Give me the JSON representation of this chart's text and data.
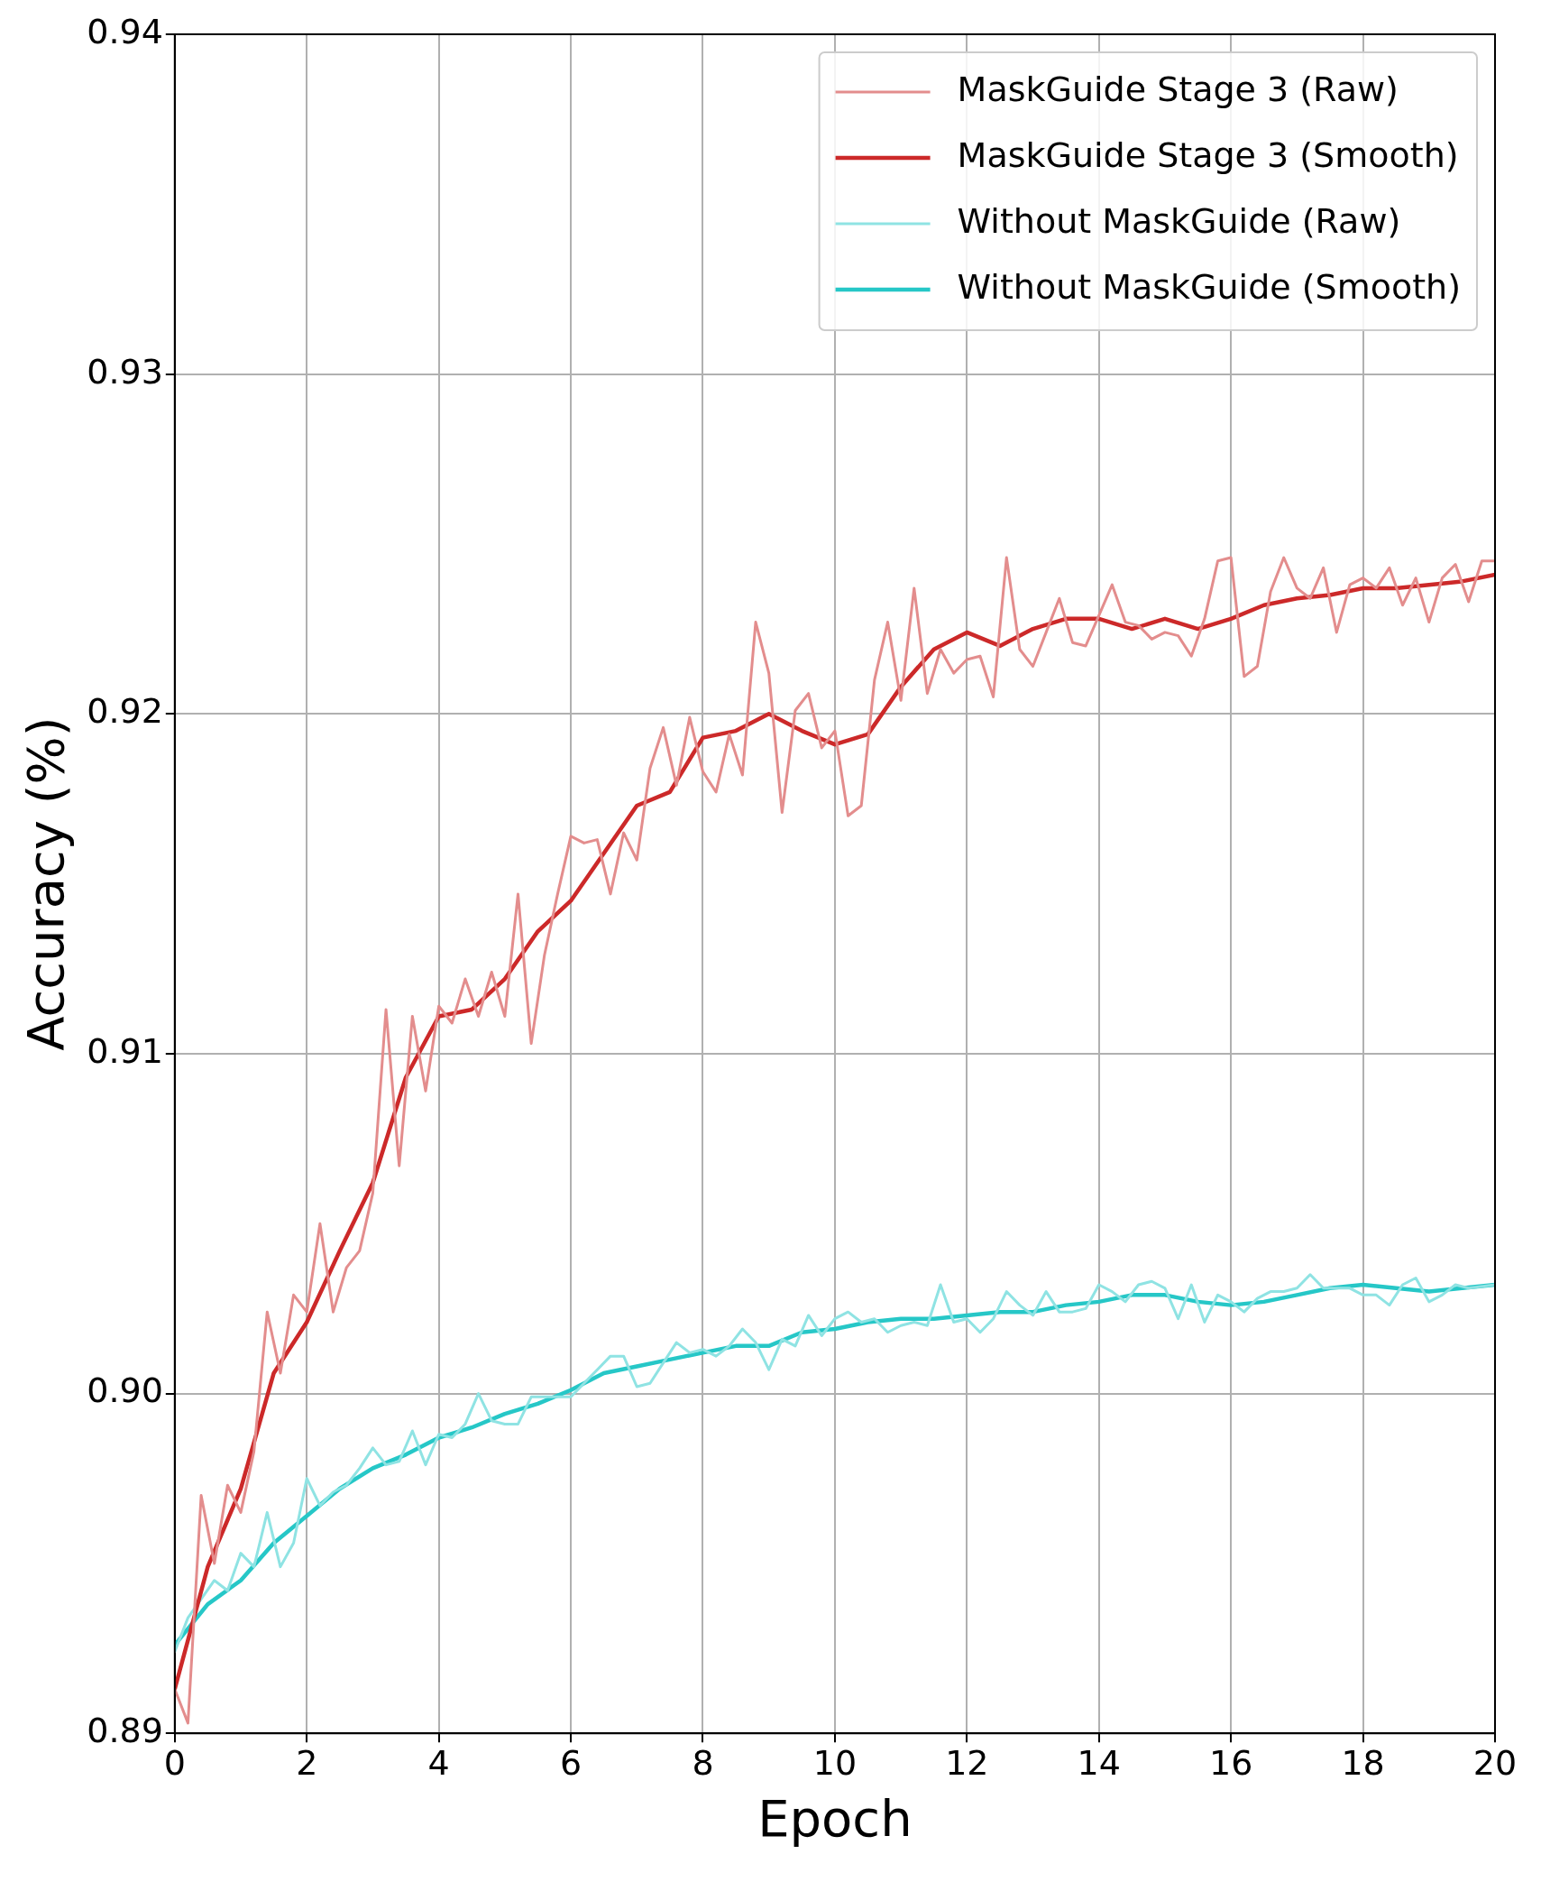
{
  "chart_data": {
    "type": "line",
    "xlabel": "Epoch",
    "ylabel": "Accuracy (%)",
    "xlim": [
      0,
      20
    ],
    "xticks": [
      0,
      2,
      4,
      6,
      8,
      10,
      12,
      14,
      16,
      18,
      20
    ],
    "ylim": [
      0.89,
      0.94
    ],
    "yticks": [
      0.89,
      {
        "value": 0.9,
        "label": "0.90"
      },
      0.91,
      0.92,
      0.93,
      0.94
    ],
    "grid": true,
    "legend": "top right",
    "marker": "none",
    "line_style": "solid",
    "series": [
      {
        "name": "MaskGuide Stage 3 (Raw)",
        "color": "#e38d8d",
        "x": [
          0,
          0.2,
          0.4,
          0.6,
          0.8,
          1.0,
          1.2,
          1.4,
          1.6,
          1.8,
          2.0,
          2.2,
          2.4,
          2.6,
          2.8,
          3.0,
          3.2,
          3.4,
          3.6,
          3.8,
          4.0,
          4.2,
          4.4,
          4.6,
          4.8,
          5.0,
          5.2,
          5.4,
          5.6,
          5.8,
          6.0,
          6.2,
          6.4,
          6.6,
          6.8,
          7.0,
          7.2,
          7.4,
          7.6,
          7.8,
          8.0,
          8.2,
          8.4,
          8.6,
          8.8,
          9.0,
          9.2,
          9.4,
          9.6,
          9.8,
          10.0,
          10.2,
          10.4,
          10.6,
          10.8,
          11.0,
          11.2,
          11.4,
          11.6,
          11.8,
          12.0,
          12.2,
          12.4,
          12.6,
          12.8,
          13.0,
          13.2,
          13.4,
          13.6,
          13.8,
          14.0,
          14.2,
          14.4,
          14.6,
          14.8,
          15.0,
          15.2,
          15.4,
          15.6,
          15.8,
          16.0,
          16.2,
          16.4,
          16.6,
          16.8,
          17.0,
          17.2,
          17.4,
          17.6,
          17.8,
          18.0,
          18.2,
          18.4,
          18.6,
          18.8,
          19.0,
          19.2,
          19.4,
          19.6,
          19.8,
          20.0
        ],
        "values": [
          0.8913,
          0.8903,
          0.897,
          0.895,
          0.8973,
          0.8965,
          0.8983,
          0.9024,
          0.9006,
          0.9029,
          0.9024,
          0.905,
          0.9024,
          0.9037,
          0.9042,
          0.9059,
          0.9113,
          0.9067,
          0.9111,
          0.9089,
          0.9114,
          0.9109,
          0.9122,
          0.9111,
          0.9124,
          0.9111,
          0.9147,
          0.9103,
          0.9129,
          0.9147,
          0.9164,
          0.9162,
          0.9163,
          0.9147,
          0.9165,
          0.9157,
          0.9184,
          0.9196,
          0.9179,
          0.9199,
          0.9183,
          0.9177,
          0.9194,
          0.9182,
          0.9227,
          0.9212,
          0.9171,
          0.9201,
          0.9206,
          0.919,
          0.9195,
          0.917,
          0.9173,
          0.921,
          0.9227,
          0.9204,
          0.9237,
          0.9206,
          0.9219,
          0.9212,
          0.9216,
          0.9217,
          0.9205,
          0.9246,
          0.9219,
          0.9214,
          0.9224,
          0.9234,
          0.9221,
          0.922,
          0.9229,
          0.9238,
          0.9227,
          0.9226,
          0.9222,
          0.9224,
          0.9223,
          0.9217,
          0.9228,
          0.9245,
          0.9246,
          0.9211,
          0.9214,
          0.9236,
          0.9246,
          0.9237,
          0.9234,
          0.9243,
          0.9224,
          0.9238,
          0.924,
          0.9237,
          0.9243,
          0.9232,
          0.924,
          0.9227,
          0.924,
          0.9244,
          0.9233,
          0.9245,
          0.9245
        ]
      },
      {
        "name": "MaskGuide Stage 3 (Smooth)",
        "color": "#cc2929",
        "x": [
          0,
          0.5,
          1,
          1.5,
          2,
          2.5,
          3,
          3.5,
          4,
          4.5,
          5,
          5.5,
          6,
          6.5,
          7,
          7.5,
          8,
          8.5,
          9,
          9.5,
          10,
          10.5,
          11,
          11.5,
          12,
          12.5,
          13,
          13.5,
          14,
          14.5,
          15,
          15.5,
          16,
          16.5,
          17,
          17.5,
          18,
          18.5,
          19,
          19.5,
          20
        ],
        "values": [
          0.8913,
          0.8949,
          0.8972,
          0.9006,
          0.9021,
          0.9042,
          0.9062,
          0.9093,
          0.9111,
          0.9113,
          0.9122,
          0.9136,
          0.9145,
          0.9159,
          0.9173,
          0.9177,
          0.9193,
          0.9195,
          0.92,
          0.9195,
          0.9191,
          0.9194,
          0.9208,
          0.9219,
          0.9224,
          0.922,
          0.9225,
          0.9228,
          0.9228,
          0.9225,
          0.9228,
          0.9225,
          0.9228,
          0.9232,
          0.9234,
          0.9235,
          0.9237,
          0.9237,
          0.9238,
          0.9239,
          0.9241
        ]
      },
      {
        "name": "Without MaskGuide (Raw)",
        "color": "#8fe3e3",
        "x": [
          0,
          0.2,
          0.6,
          0.8,
          1.0,
          1.2,
          1.4,
          1.6,
          1.8,
          2.0,
          2.2,
          2.4,
          2.6,
          2.8,
          3.0,
          3.2,
          3.4,
          3.6,
          3.8,
          4.0,
          4.2,
          4.4,
          4.6,
          4.8,
          5.0,
          5.2,
          5.4,
          5.6,
          5.8,
          6.0,
          6.2,
          6.4,
          6.6,
          6.8,
          7.0,
          7.2,
          7.4,
          7.6,
          7.8,
          8.0,
          8.2,
          8.4,
          8.6,
          8.8,
          9.0,
          9.2,
          9.4,
          9.6,
          9.8,
          10.0,
          10.2,
          10.4,
          10.6,
          10.8,
          11.0,
          11.2,
          11.4,
          11.6,
          11.8,
          12.0,
          12.2,
          12.4,
          12.6,
          12.8,
          13.0,
          13.2,
          13.4,
          13.6,
          13.8,
          14.0,
          14.2,
          14.4,
          14.6,
          14.8,
          15.0,
          15.2,
          15.4,
          15.6,
          15.8,
          16.0,
          16.2,
          16.4,
          16.6,
          16.8,
          17.0,
          17.2,
          17.4,
          17.6,
          17.8,
          18.0,
          18.2,
          18.4,
          18.6,
          18.8,
          19.0,
          19.2,
          19.4,
          19.6,
          20.0
        ],
        "values": [
          0.8924,
          0.8934,
          0.8945,
          0.8942,
          0.8953,
          0.8949,
          0.8965,
          0.8949,
          0.8956,
          0.8975,
          0.8967,
          0.8971,
          0.8973,
          0.8978,
          0.8984,
          0.8979,
          0.898,
          0.8989,
          0.8979,
          0.8988,
          0.8987,
          0.8991,
          0.9,
          0.8992,
          0.8991,
          0.8991,
          0.8999,
          0.8999,
          0.8999,
          0.8999,
          0.9003,
          0.9007,
          0.9011,
          0.9011,
          0.9002,
          0.9003,
          0.9009,
          0.9015,
          0.9012,
          0.9013,
          0.9011,
          0.9014,
          0.9019,
          0.9015,
          0.9007,
          0.9016,
          0.9014,
          0.9023,
          0.9017,
          0.9022,
          0.9024,
          0.9021,
          0.9022,
          0.9018,
          0.902,
          0.9021,
          0.902,
          0.9032,
          0.9021,
          0.9022,
          0.9018,
          0.9022,
          0.903,
          0.9026,
          0.9023,
          0.903,
          0.9024,
          0.9024,
          0.9025,
          0.9032,
          0.903,
          0.9027,
          0.9032,
          0.9033,
          0.9031,
          0.9022,
          0.9032,
          0.9021,
          0.9029,
          0.9027,
          0.9024,
          0.9028,
          0.903,
          0.903,
          0.9031,
          0.9035,
          0.9031,
          0.9031,
          0.9031,
          0.9029,
          0.9029,
          0.9026,
          0.9032,
          0.9034,
          0.9027,
          0.9029,
          0.9032,
          0.9031,
          0.9032
        ]
      },
      {
        "name": "Without MaskGuide (Smooth)",
        "color": "#26c7c7",
        "x": [
          0,
          0.5,
          1,
          1.5,
          2,
          2.5,
          3,
          3.5,
          4,
          4.5,
          5,
          5.5,
          6,
          6.5,
          7,
          7.5,
          8,
          8.5,
          9,
          9.5,
          10,
          10.5,
          11,
          11.5,
          12,
          12.5,
          13,
          13.5,
          14,
          14.5,
          15,
          15.5,
          16,
          16.5,
          17,
          17.5,
          18,
          18.5,
          19,
          19.5,
          20
        ],
        "values": [
          0.8926,
          0.8938,
          0.8945,
          0.8956,
          0.8964,
          0.8972,
          0.8978,
          0.8982,
          0.8987,
          0.899,
          0.8994,
          0.8997,
          0.9001,
          0.9006,
          0.9008,
          0.901,
          0.9012,
          0.9014,
          0.9014,
          0.9018,
          0.9019,
          0.9021,
          0.9022,
          0.9022,
          0.9023,
          0.9024,
          0.9024,
          0.9026,
          0.9027,
          0.9029,
          0.9029,
          0.9027,
          0.9026,
          0.9027,
          0.9029,
          0.9031,
          0.9032,
          0.9031,
          0.903,
          0.9031,
          0.9032
        ]
      }
    ]
  }
}
